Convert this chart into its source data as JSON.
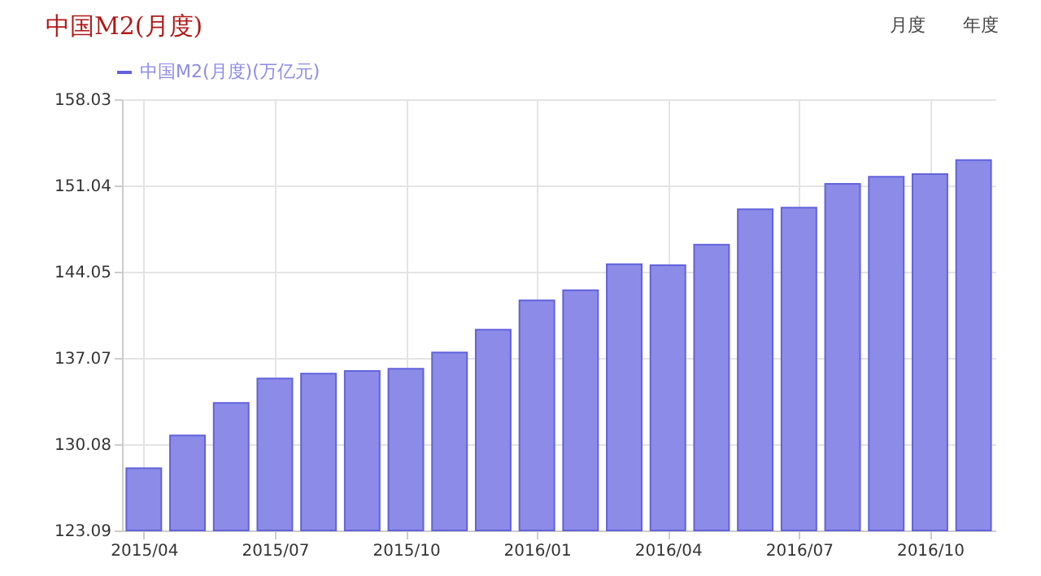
{
  "chart_data": {
    "type": "bar",
    "title": "中国M2(月度)",
    "categories": [
      "2015/04",
      null,
      null,
      "2015/07",
      null,
      null,
      "2015/10",
      null,
      null,
      "2016/01",
      null,
      null,
      "2016/04",
      null,
      null,
      "2016/07",
      null,
      null,
      "2016/10",
      null
    ],
    "series": [
      {
        "name": "中国M2(月度)(万亿元)",
        "color": "#8c8ce8",
        "values": [
          128.14,
          130.78,
          133.42,
          135.4,
          135.79,
          136.01,
          136.19,
          137.51,
          139.35,
          141.73,
          142.56,
          144.67,
          144.58,
          146.25,
          149.11,
          149.24,
          151.18,
          151.75,
          151.97,
          153.11
        ]
      }
    ],
    "ylim": [
      123.09,
      158.03
    ],
    "yticks": [
      123.09,
      130.08,
      137.07,
      144.05,
      151.04,
      158.03
    ],
    "grid": true,
    "legend": "top left",
    "annotations": [
      "月度",
      "年度"
    ]
  }
}
